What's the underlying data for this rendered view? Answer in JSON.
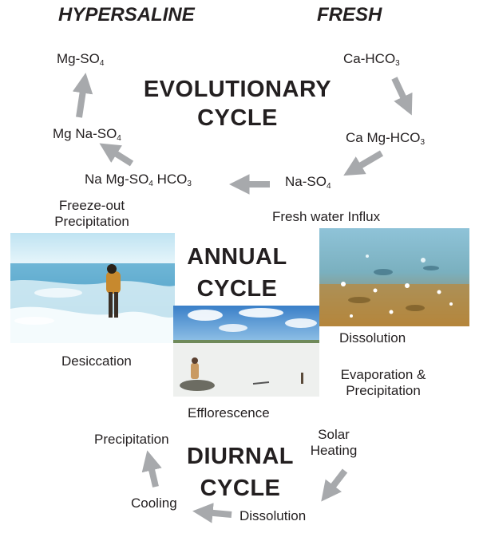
{
  "headers": {
    "hypersaline": "HYPERSALINE",
    "fresh": "FRESH"
  },
  "evolutionary": {
    "title_line1": "EVOLUTIONARY",
    "title_line2": "CYCLE",
    "nodes": {
      "mg_so4": {
        "main": "Mg-SO",
        "sub": "4"
      },
      "ca_hco3": {
        "main": "Ca-HCO",
        "sub": "3"
      },
      "mg_na_so4": {
        "main": "Mg Na-SO",
        "sub": "4"
      },
      "ca_mg_hco3": {
        "main": "Ca Mg-HCO",
        "sub": "3"
      },
      "na_mg_so4_hco3": {
        "main1": "Na Mg-SO",
        "sub1": "4",
        "main2": " HCO",
        "sub2": "3"
      },
      "na_so4": {
        "main": "Na-SO",
        "sub": "4"
      }
    }
  },
  "annual": {
    "title_line1": "ANNUAL",
    "title_line2": "CYCLE",
    "labels": {
      "freeze_out_1": "Freeze-out",
      "freeze_out_2": "Precipitation",
      "fresh_water_influx": "Fresh water Influx",
      "dissolution": "Dissolution",
      "desiccation": "Desiccation",
      "evaporation_1": "Evaporation &",
      "evaporation_2": "Precipitation",
      "efflorescence": "Efflorescence"
    }
  },
  "diurnal": {
    "title_line1": "DIURNAL",
    "title_line2": "CYCLE",
    "labels": {
      "precipitation": "Precipitation",
      "solar_1": "Solar",
      "solar_2": "Heating",
      "cooling": "Cooling",
      "dissolution": "Dissolution"
    }
  },
  "colors": {
    "arrow": "#a7a9ac",
    "text": "#231f20"
  }
}
